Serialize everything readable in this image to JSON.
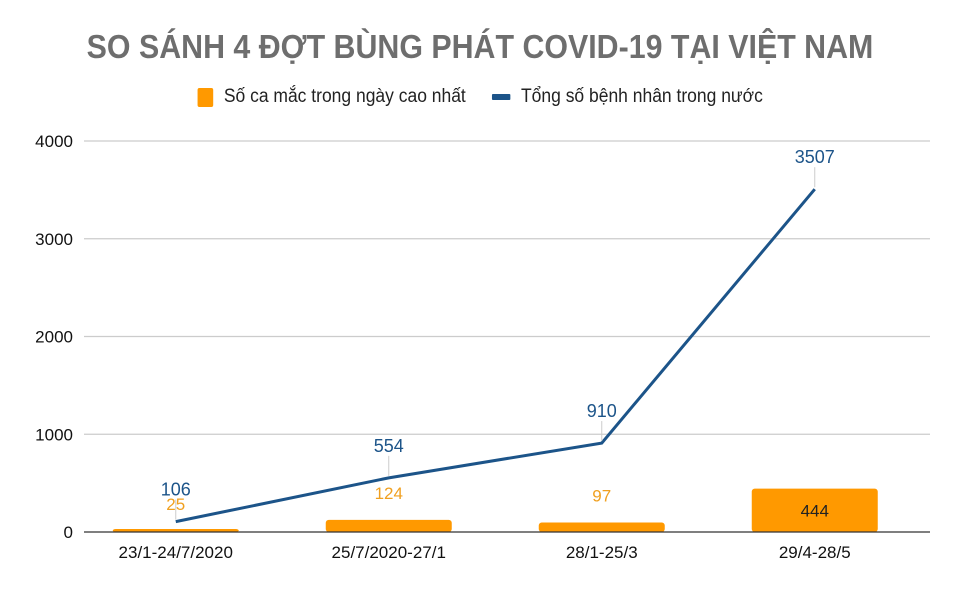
{
  "title": "SO SÁNH 4 ĐỢT BÙNG PHÁT COVID-19 TẠI VIỆT NAM",
  "legend": {
    "bar": "Số ca mắc trong ngày cao nhất",
    "line": "Tổng số bệnh nhân trong nước"
  },
  "colors": {
    "bar": "#ff9900",
    "line": "#1c5489",
    "title": "#6e6e6e",
    "grid": "#cccccc"
  },
  "yticks": [
    "0",
    "1000",
    "2000",
    "3000",
    "4000"
  ],
  "chart_data": {
    "type": "bar",
    "title": "SO SÁNH 4 ĐỢT BÙNG PHÁT COVID-19 TẠI VIỆT NAM",
    "xlabel": "",
    "ylabel": "",
    "ylim": [
      0,
      4000
    ],
    "grid": true,
    "legend_position": "top",
    "categories": [
      "23/1-24/7/2020",
      "25/7/2020-27/1",
      "28/1-25/3",
      "29/4-28/5"
    ],
    "series": [
      {
        "name": "Số ca mắc trong ngày cao nhất",
        "type": "bar",
        "values": [
          25,
          124,
          97,
          444
        ]
      },
      {
        "name": "Tổng số bệnh nhân trong nước",
        "type": "line",
        "values": [
          106,
          554,
          910,
          3507
        ]
      }
    ]
  }
}
